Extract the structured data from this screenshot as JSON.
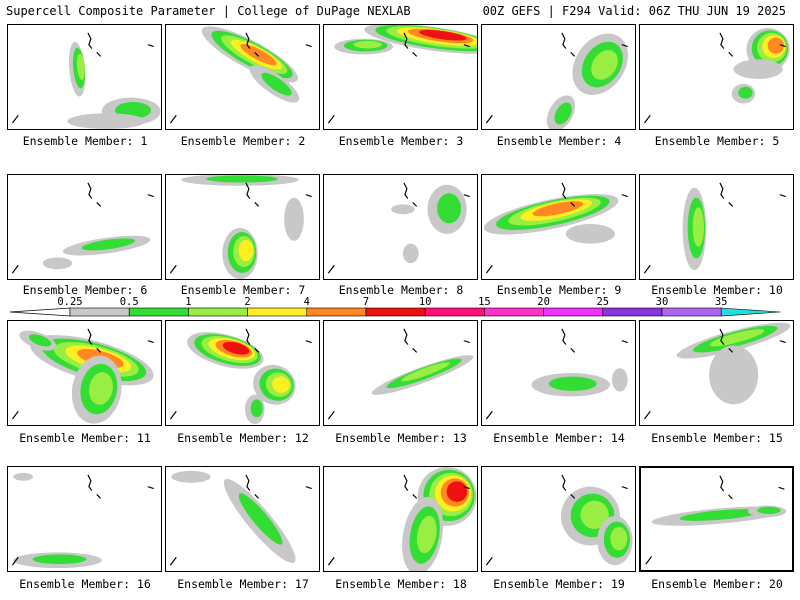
{
  "header": {
    "left": "Supercell Composite Parameter | College of DuPage NEXLAB",
    "right": "00Z GEFS | F294 Valid: 06Z THU JUN 19 2025"
  },
  "colors": {
    "c025": "#c8c8c8",
    "c05": "#33dd33",
    "c1": "#99ee44",
    "c2": "#ffee22",
    "c4": "#ff8822",
    "c7": "#ee1111",
    "c10": "#ff1177",
    "c15": "#ff33cc",
    "c20": "#ee33ff",
    "c25": "#8833dd",
    "c30": "#aa66ee",
    "c35": "#22dddd"
  },
  "colorbar": {
    "ticks": [
      "0.25",
      "0.5",
      "1",
      "2",
      "4",
      "7",
      "10",
      "15",
      "20",
      "25",
      "30",
      "35"
    ]
  },
  "members": [
    {
      "label": "Ensemble Member: 1"
    },
    {
      "label": "Ensemble Member: 2"
    },
    {
      "label": "Ensemble Member: 3"
    },
    {
      "label": "Ensemble Member: 4"
    },
    {
      "label": "Ensemble Member: 5"
    },
    {
      "label": "Ensemble Member: 6"
    },
    {
      "label": "Ensemble Member: 7"
    },
    {
      "label": "Ensemble Member: 8"
    },
    {
      "label": "Ensemble Member: 9"
    },
    {
      "label": "Ensemble Member: 10"
    },
    {
      "label": "Ensemble Member: 11"
    },
    {
      "label": "Ensemble Member: 12"
    },
    {
      "label": "Ensemble Member: 13"
    },
    {
      "label": "Ensemble Member: 14"
    },
    {
      "label": "Ensemble Member: 15"
    },
    {
      "label": "Ensemble Member: 16"
    },
    {
      "label": "Ensemble Member: 17"
    },
    {
      "label": "Ensemble Member: 18"
    },
    {
      "label": "Ensemble Member: 19"
    },
    {
      "label": "Ensemble Member: 20"
    }
  ]
}
